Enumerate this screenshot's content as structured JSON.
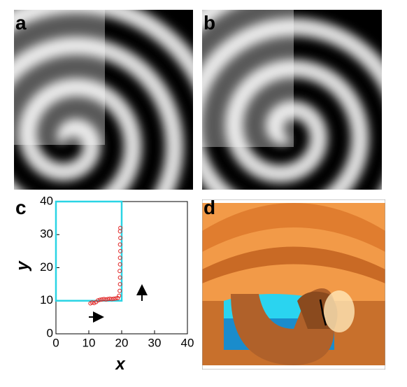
{
  "panel_labels": [
    "a",
    "b",
    "c",
    "d"
  ],
  "chart_data": {
    "type": "scatter",
    "x_label": "x",
    "y_label": "y",
    "xlim": [
      0,
      40
    ],
    "ylim": [
      0,
      40
    ],
    "xticks": [
      0,
      10,
      20,
      30,
      40
    ],
    "yticks": [
      0,
      10,
      20,
      30,
      40
    ],
    "rectangle": {
      "xlim": [
        0,
        20
      ],
      "ylim": [
        10,
        40
      ],
      "color": "#2ad4e4"
    },
    "series": [
      {
        "color": "#e02020",
        "x": [
          10.5,
          11,
          11.6,
          12.2,
          12.8,
          13.4,
          14,
          14.6,
          15.2,
          15.8,
          16.4,
          17,
          17.6,
          18.2,
          18.8,
          19.2,
          19.4,
          19.5,
          19.5,
          19.4,
          19.5,
          19.5,
          19.6,
          19.5,
          19.6,
          19.5,
          19.6
        ],
        "y": [
          9.2,
          9.5,
          9.3,
          9.6,
          10.1,
          10.3,
          10.4,
          10.5,
          10.4,
          10.5,
          10.6,
          10.5,
          10.6,
          10.7,
          10.8,
          11.5,
          13,
          15,
          17,
          19,
          21,
          23,
          25,
          27,
          29,
          31,
          32
        ]
      }
    ]
  }
}
